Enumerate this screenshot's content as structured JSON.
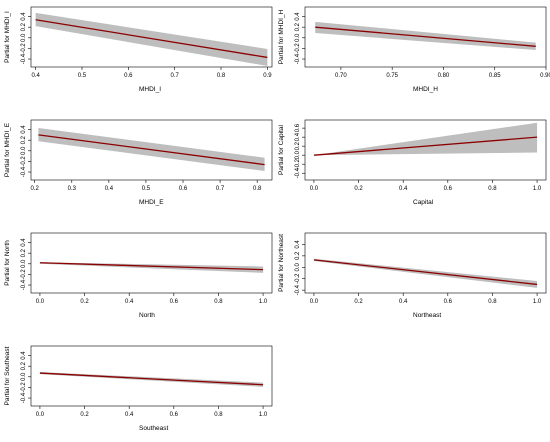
{
  "chart_data": [
    {
      "type": "line",
      "xlabel": "MHDI_I",
      "ylabel": "Partial for MHDI_I",
      "xlim": [
        0.39,
        0.91
      ],
      "ylim": [
        -0.55,
        0.58
      ],
      "xticks": [
        0.4,
        0.5,
        0.6,
        0.7,
        0.8,
        0.9
      ],
      "xtick_labels": [
        "0.4",
        "0.5",
        "0.6",
        "0.7",
        "0.8",
        "0.9"
      ],
      "yticks": [
        -0.4,
        -0.2,
        0.0,
        0.2,
        0.4
      ],
      "ytick_labels": [
        "-0.4",
        "-0.2",
        "0.0",
        "0.2",
        "0.4"
      ],
      "series": [
        {
          "x": [
            0.4,
            0.9
          ],
          "values": [
            0.34,
            -0.37
          ],
          "color": "#8b0000"
        },
        {
          "x": [
            0.4,
            0.9
          ],
          "lower": [
            0.22,
            -0.53
          ],
          "upper": [
            0.47,
            -0.21
          ],
          "color": "#bebebe"
        }
      ]
    },
    {
      "type": "line",
      "xlabel": "MHDI_H",
      "ylabel": "Partial for MHDI_H",
      "xlim": [
        0.665,
        0.9
      ],
      "ylim": [
        -0.55,
        0.58
      ],
      "xticks": [
        0.7,
        0.75,
        0.8,
        0.85,
        0.9
      ],
      "xtick_labels": [
        "0.70",
        "0.75",
        "0.80",
        "0.85",
        "0.90"
      ],
      "yticks": [
        -0.4,
        -0.2,
        0.0,
        0.2,
        0.4
      ],
      "ytick_labels": [
        "-0.4",
        "-0.2",
        "0.0",
        "0.2",
        "0.4"
      ],
      "series": [
        {
          "x": [
            0.675,
            0.89
          ],
          "values": [
            0.2,
            -0.16
          ],
          "color": "#8b0000"
        },
        {
          "x": [
            0.675,
            0.89
          ],
          "lower": [
            0.09,
            -0.23
          ],
          "upper": [
            0.3,
            -0.09
          ],
          "color": "#bebebe"
        }
      ]
    },
    {
      "type": "line",
      "xlabel": "MHDI_E",
      "ylabel": "Partial for MHDI_E",
      "xlim": [
        0.19,
        0.84
      ],
      "ylim": [
        -0.55,
        0.58
      ],
      "xticks": [
        0.2,
        0.3,
        0.4,
        0.5,
        0.6,
        0.7,
        0.8
      ],
      "xtick_labels": [
        "0.2",
        "0.3",
        "0.4",
        "0.5",
        "0.6",
        "0.7",
        "0.8"
      ],
      "yticks": [
        -0.4,
        -0.2,
        0.0,
        0.2,
        0.4
      ],
      "ytick_labels": [
        "-0.4",
        "-0.2",
        "0.0",
        "0.2",
        "0.4"
      ],
      "series": [
        {
          "x": [
            0.21,
            0.82
          ],
          "values": [
            0.3,
            -0.26
          ],
          "color": "#8b0000"
        },
        {
          "x": [
            0.21,
            0.82
          ],
          "lower": [
            0.18,
            -0.38
          ],
          "upper": [
            0.43,
            -0.13
          ],
          "color": "#bebebe"
        }
      ]
    },
    {
      "type": "line",
      "xlabel": "Capital",
      "ylabel": "Partial for Capital",
      "xlim": [
        -0.04,
        1.04
      ],
      "ylim": [
        -0.55,
        0.78
      ],
      "xticks": [
        0.0,
        0.2,
        0.4,
        0.6,
        0.8,
        1.0
      ],
      "xtick_labels": [
        "0.0",
        "0.2",
        "0.4",
        "0.6",
        "0.8",
        "1.0"
      ],
      "yticks": [
        -0.4,
        -0.2,
        0.0,
        0.2,
        0.4,
        0.6
      ],
      "ytick_labels": [
        "-0.4",
        "-0.2",
        "0.0",
        "0.2",
        "0.4",
        "0.6"
      ],
      "series": [
        {
          "x": [
            0.0,
            1.0
          ],
          "values": [
            0.0,
            0.4
          ],
          "color": "#8b0000"
        },
        {
          "x": [
            0.0,
            1.0
          ],
          "lower": [
            0.0,
            0.06
          ],
          "upper": [
            0.0,
            0.72
          ],
          "color": "#bebebe"
        }
      ]
    },
    {
      "type": "line",
      "xlabel": "North",
      "ylabel": "Partial for North",
      "xlim": [
        -0.04,
        1.04
      ],
      "ylim": [
        -0.55,
        0.58
      ],
      "xticks": [
        0.0,
        0.2,
        0.4,
        0.6,
        0.8,
        1.0
      ],
      "xtick_labels": [
        "0.0",
        "0.2",
        "0.4",
        "0.6",
        "0.8",
        "1.0"
      ],
      "yticks": [
        -0.4,
        -0.2,
        0.0,
        0.2,
        0.4
      ],
      "ytick_labels": [
        "-0.4",
        "-0.2",
        "0.0",
        "0.2",
        "0.4"
      ],
      "series": [
        {
          "x": [
            0.0,
            1.0
          ],
          "values": [
            0.02,
            -0.11
          ],
          "color": "#8b0000"
        },
        {
          "x": [
            0.0,
            1.0
          ],
          "lower": [
            0.0,
            -0.17
          ],
          "upper": [
            0.03,
            -0.05
          ],
          "color": "#bebebe"
        }
      ]
    },
    {
      "type": "line",
      "xlabel": "Northeast",
      "ylabel": "Partial for Northeast",
      "xlim": [
        -0.04,
        1.04
      ],
      "ylim": [
        -0.45,
        0.6
      ],
      "xticks": [
        0.0,
        0.2,
        0.4,
        0.6,
        0.8,
        1.0
      ],
      "xtick_labels": [
        "0.0",
        "0.2",
        "0.4",
        "0.6",
        "0.8",
        "1.0"
      ],
      "yticks": [
        -0.4,
        -0.2,
        0.0,
        0.2,
        0.4
      ],
      "ytick_labels": [
        "-0.4",
        "-0.2",
        "0.0",
        "0.2",
        "0.4"
      ],
      "series": [
        {
          "x": [
            0.0,
            1.0
          ],
          "values": [
            0.13,
            -0.3
          ],
          "color": "#8b0000"
        },
        {
          "x": [
            0.0,
            1.0
          ],
          "lower": [
            0.11,
            -0.36
          ],
          "upper": [
            0.15,
            -0.24
          ],
          "color": "#bebebe"
        }
      ]
    },
    {
      "type": "line",
      "xlabel": "Southeast",
      "ylabel": "Partial for Southeast",
      "xlim": [
        -0.04,
        1.04
      ],
      "ylim": [
        -0.55,
        0.58
      ],
      "xticks": [
        0.0,
        0.2,
        0.4,
        0.6,
        0.8,
        1.0
      ],
      "xtick_labels": [
        "0.0",
        "0.2",
        "0.4",
        "0.6",
        "0.8",
        "1.0"
      ],
      "yticks": [
        -0.4,
        -0.2,
        0.0,
        0.2,
        0.4
      ],
      "ytick_labels": [
        "-0.4",
        "-0.2",
        "0.0",
        "0.2",
        "0.4"
      ],
      "series": [
        {
          "x": [
            0.0,
            1.0
          ],
          "values": [
            0.07,
            -0.15
          ],
          "color": "#8b0000"
        },
        {
          "x": [
            0.0,
            1.0
          ],
          "lower": [
            0.05,
            -0.19
          ],
          "upper": [
            0.09,
            -0.11
          ],
          "color": "#bebebe"
        }
      ]
    }
  ]
}
